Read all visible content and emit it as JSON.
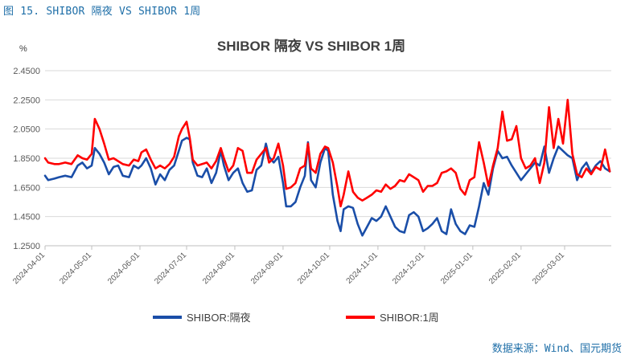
{
  "figure": {
    "caption": "图 15.  SHIBOR 隔夜 VS SHIBOR 1周",
    "source": "数据来源：Wind、国元期货"
  },
  "chart_data": {
    "type": "line",
    "title": "SHIBOR 隔夜 VS SHIBOR 1周",
    "unit": "%",
    "ylim": [
      1.25,
      2.45
    ],
    "yticks": [
      "2.4500",
      "2.2500",
      "2.0500",
      "1.8500",
      "1.6500",
      "1.4500",
      "1.2500"
    ],
    "ytick_values": [
      2.45,
      2.25,
      2.05,
      1.85,
      1.65,
      1.45,
      1.25
    ],
    "xlim": [
      "2024-04-01",
      "2025-03-31"
    ],
    "xticks": [
      "2024-04-01",
      "2024-05-01",
      "2024-06-01",
      "2024-07-01",
      "2024-08-01",
      "2024-09-01",
      "2024-10-01",
      "2024-11-01",
      "2024-12-01",
      "2025-01-01",
      "2025-02-01",
      "2025-03-01"
    ],
    "grid": true,
    "legend_position": "bottom",
    "colors": {
      "overnight": "#1a4ea8",
      "week": "#ff0000",
      "grid": "#d9d9d9",
      "axis": "#bfbfbf"
    },
    "series": [
      {
        "name": "SHIBOR:隔夜",
        "color": "#1a4ea8",
        "points": [
          [
            "2024-04-01",
            1.73
          ],
          [
            "2024-04-03",
            1.7
          ],
          [
            "2024-04-07",
            1.71
          ],
          [
            "2024-04-10",
            1.72
          ],
          [
            "2024-04-14",
            1.73
          ],
          [
            "2024-04-18",
            1.72
          ],
          [
            "2024-04-22",
            1.8
          ],
          [
            "2024-04-25",
            1.82
          ],
          [
            "2024-04-28",
            1.78
          ],
          [
            "2024-05-01",
            1.8
          ],
          [
            "2024-05-03",
            1.92
          ],
          [
            "2024-05-06",
            1.88
          ],
          [
            "2024-05-09",
            1.82
          ],
          [
            "2024-05-12",
            1.74
          ],
          [
            "2024-05-15",
            1.79
          ],
          [
            "2024-05-18",
            1.8
          ],
          [
            "2024-05-21",
            1.73
          ],
          [
            "2024-05-25",
            1.72
          ],
          [
            "2024-05-28",
            1.8
          ],
          [
            "2024-05-31",
            1.78
          ],
          [
            "2024-06-02",
            1.8
          ],
          [
            "2024-06-05",
            1.85
          ],
          [
            "2024-06-08",
            1.78
          ],
          [
            "2024-06-11",
            1.67
          ],
          [
            "2024-06-14",
            1.74
          ],
          [
            "2024-06-17",
            1.7
          ],
          [
            "2024-06-20",
            1.77
          ],
          [
            "2024-06-23",
            1.8
          ],
          [
            "2024-06-26",
            1.9
          ],
          [
            "2024-06-28",
            1.97
          ],
          [
            "2024-07-01",
            1.99
          ],
          [
            "2024-07-03",
            1.98
          ],
          [
            "2024-07-05",
            1.82
          ],
          [
            "2024-07-08",
            1.73
          ],
          [
            "2024-07-11",
            1.72
          ],
          [
            "2024-07-14",
            1.78
          ],
          [
            "2024-07-17",
            1.68
          ],
          [
            "2024-07-20",
            1.75
          ],
          [
            "2024-07-23",
            1.9
          ],
          [
            "2024-07-25",
            1.8
          ],
          [
            "2024-07-28",
            1.7
          ],
          [
            "2024-07-31",
            1.75
          ],
          [
            "2024-08-03",
            1.78
          ],
          [
            "2024-08-06",
            1.68
          ],
          [
            "2024-08-09",
            1.62
          ],
          [
            "2024-08-12",
            1.63
          ],
          [
            "2024-08-15",
            1.77
          ],
          [
            "2024-08-18",
            1.8
          ],
          [
            "2024-08-21",
            1.95
          ],
          [
            "2024-08-23",
            1.86
          ],
          [
            "2024-08-26",
            1.82
          ],
          [
            "2024-08-29",
            1.86
          ],
          [
            "2024-09-01",
            1.68
          ],
          [
            "2024-09-03",
            1.52
          ],
          [
            "2024-09-06",
            1.52
          ],
          [
            "2024-09-09",
            1.55
          ],
          [
            "2024-09-12",
            1.65
          ],
          [
            "2024-09-15",
            1.73
          ],
          [
            "2024-09-17",
            1.96
          ],
          [
            "2024-09-19",
            1.7
          ],
          [
            "2024-09-22",
            1.65
          ],
          [
            "2024-09-25",
            1.82
          ],
          [
            "2024-09-28",
            1.92
          ],
          [
            "2024-09-30",
            1.9
          ],
          [
            "2024-10-03",
            1.6
          ],
          [
            "2024-10-06",
            1.42
          ],
          [
            "2024-10-08",
            1.35
          ],
          [
            "2024-10-10",
            1.5
          ],
          [
            "2024-10-13",
            1.52
          ],
          [
            "2024-10-16",
            1.51
          ],
          [
            "2024-10-19",
            1.4
          ],
          [
            "2024-10-22",
            1.32
          ],
          [
            "2024-10-25",
            1.38
          ],
          [
            "2024-10-28",
            1.44
          ],
          [
            "2024-10-31",
            1.42
          ],
          [
            "2024-11-03",
            1.45
          ],
          [
            "2024-11-06",
            1.52
          ],
          [
            "2024-11-09",
            1.45
          ],
          [
            "2024-11-12",
            1.38
          ],
          [
            "2024-11-15",
            1.35
          ],
          [
            "2024-11-18",
            1.34
          ],
          [
            "2024-11-21",
            1.46
          ],
          [
            "2024-11-24",
            1.48
          ],
          [
            "2024-11-27",
            1.45
          ],
          [
            "2024-11-30",
            1.35
          ],
          [
            "2024-12-03",
            1.37
          ],
          [
            "2024-12-06",
            1.4
          ],
          [
            "2024-12-09",
            1.44
          ],
          [
            "2024-12-12",
            1.35
          ],
          [
            "2024-12-15",
            1.33
          ],
          [
            "2024-12-18",
            1.5
          ],
          [
            "2024-12-21",
            1.4
          ],
          [
            "2024-12-24",
            1.35
          ],
          [
            "2024-12-27",
            1.33
          ],
          [
            "2024-12-30",
            1.39
          ],
          [
            "2025-01-02",
            1.38
          ],
          [
            "2025-01-05",
            1.52
          ],
          [
            "2025-01-08",
            1.68
          ],
          [
            "2025-01-11",
            1.6
          ],
          [
            "2025-01-14",
            1.78
          ],
          [
            "2025-01-17",
            1.9
          ],
          [
            "2025-01-20",
            1.85
          ],
          [
            "2025-01-23",
            1.86
          ],
          [
            "2025-01-26",
            1.8
          ],
          [
            "2025-01-29",
            1.75
          ],
          [
            "2025-02-01",
            1.7
          ],
          [
            "2025-02-04",
            1.74
          ],
          [
            "2025-02-07",
            1.78
          ],
          [
            "2025-02-10",
            1.82
          ],
          [
            "2025-02-13",
            1.8
          ],
          [
            "2025-02-16",
            1.93
          ],
          [
            "2025-02-19",
            1.75
          ],
          [
            "2025-02-22",
            1.85
          ],
          [
            "2025-02-25",
            1.93
          ],
          [
            "2025-02-28",
            1.9
          ],
          [
            "2025-03-03",
            1.87
          ],
          [
            "2025-03-06",
            1.85
          ],
          [
            "2025-03-09",
            1.7
          ],
          [
            "2025-03-12",
            1.78
          ],
          [
            "2025-03-15",
            1.82
          ],
          [
            "2025-03-18",
            1.75
          ],
          [
            "2025-03-21",
            1.8
          ],
          [
            "2025-03-24",
            1.83
          ],
          [
            "2025-03-27",
            1.78
          ],
          [
            "2025-03-30",
            1.76
          ]
        ]
      },
      {
        "name": "SHIBOR:1周",
        "color": "#ff0000",
        "points": [
          [
            "2024-04-01",
            1.85
          ],
          [
            "2024-04-03",
            1.82
          ],
          [
            "2024-04-07",
            1.81
          ],
          [
            "2024-04-10",
            1.81
          ],
          [
            "2024-04-14",
            1.82
          ],
          [
            "2024-04-18",
            1.81
          ],
          [
            "2024-04-22",
            1.87
          ],
          [
            "2024-04-25",
            1.85
          ],
          [
            "2024-04-28",
            1.84
          ],
          [
            "2024-05-01",
            1.88
          ],
          [
            "2024-05-03",
            2.12
          ],
          [
            "2024-05-06",
            2.05
          ],
          [
            "2024-05-09",
            1.95
          ],
          [
            "2024-05-12",
            1.84
          ],
          [
            "2024-05-15",
            1.85
          ],
          [
            "2024-05-18",
            1.83
          ],
          [
            "2024-05-21",
            1.81
          ],
          [
            "2024-05-25",
            1.8
          ],
          [
            "2024-05-28",
            1.84
          ],
          [
            "2024-05-31",
            1.83
          ],
          [
            "2024-06-02",
            1.89
          ],
          [
            "2024-06-05",
            1.91
          ],
          [
            "2024-06-08",
            1.84
          ],
          [
            "2024-06-11",
            1.78
          ],
          [
            "2024-06-14",
            1.8
          ],
          [
            "2024-06-17",
            1.78
          ],
          [
            "2024-06-20",
            1.81
          ],
          [
            "2024-06-23",
            1.86
          ],
          [
            "2024-06-26",
            2.0
          ],
          [
            "2024-06-28",
            2.05
          ],
          [
            "2024-07-01",
            2.1
          ],
          [
            "2024-07-03",
            1.99
          ],
          [
            "2024-07-05",
            1.84
          ],
          [
            "2024-07-08",
            1.8
          ],
          [
            "2024-07-11",
            1.81
          ],
          [
            "2024-07-14",
            1.82
          ],
          [
            "2024-07-17",
            1.78
          ],
          [
            "2024-07-20",
            1.83
          ],
          [
            "2024-07-23",
            1.92
          ],
          [
            "2024-07-25",
            1.85
          ],
          [
            "2024-07-28",
            1.76
          ],
          [
            "2024-07-31",
            1.8
          ],
          [
            "2024-08-03",
            1.92
          ],
          [
            "2024-08-06",
            1.9
          ],
          [
            "2024-08-09",
            1.75
          ],
          [
            "2024-08-12",
            1.75
          ],
          [
            "2024-08-15",
            1.84
          ],
          [
            "2024-08-18",
            1.88
          ],
          [
            "2024-08-21",
            1.92
          ],
          [
            "2024-08-23",
            1.82
          ],
          [
            "2024-08-26",
            1.85
          ],
          [
            "2024-08-29",
            1.95
          ],
          [
            "2024-09-01",
            1.8
          ],
          [
            "2024-09-03",
            1.64
          ],
          [
            "2024-09-06",
            1.65
          ],
          [
            "2024-09-09",
            1.68
          ],
          [
            "2024-09-12",
            1.78
          ],
          [
            "2024-09-15",
            1.8
          ],
          [
            "2024-09-17",
            1.95
          ],
          [
            "2024-09-19",
            1.78
          ],
          [
            "2024-09-22",
            1.75
          ],
          [
            "2024-09-25",
            1.88
          ],
          [
            "2024-09-28",
            1.93
          ],
          [
            "2024-09-30",
            1.92
          ],
          [
            "2024-10-03",
            1.82
          ],
          [
            "2024-10-06",
            1.65
          ],
          [
            "2024-10-08",
            1.52
          ],
          [
            "2024-10-10",
            1.6
          ],
          [
            "2024-10-13",
            1.76
          ],
          [
            "2024-10-16",
            1.62
          ],
          [
            "2024-10-19",
            1.58
          ],
          [
            "2024-10-22",
            1.56
          ],
          [
            "2024-10-25",
            1.58
          ],
          [
            "2024-10-28",
            1.6
          ],
          [
            "2024-10-31",
            1.63
          ],
          [
            "2024-11-03",
            1.62
          ],
          [
            "2024-11-06",
            1.67
          ],
          [
            "2024-11-09",
            1.64
          ],
          [
            "2024-11-12",
            1.66
          ],
          [
            "2024-11-15",
            1.7
          ],
          [
            "2024-11-18",
            1.69
          ],
          [
            "2024-11-21",
            1.74
          ],
          [
            "2024-11-24",
            1.72
          ],
          [
            "2024-11-27",
            1.7
          ],
          [
            "2024-11-30",
            1.62
          ],
          [
            "2024-12-03",
            1.66
          ],
          [
            "2024-12-06",
            1.66
          ],
          [
            "2024-12-09",
            1.68
          ],
          [
            "2024-12-12",
            1.75
          ],
          [
            "2024-12-15",
            1.76
          ],
          [
            "2024-12-18",
            1.78
          ],
          [
            "2024-12-21",
            1.75
          ],
          [
            "2024-12-24",
            1.64
          ],
          [
            "2024-12-27",
            1.6
          ],
          [
            "2024-12-30",
            1.7
          ],
          [
            "2025-01-02",
            1.72
          ],
          [
            "2025-01-05",
            1.96
          ],
          [
            "2025-01-08",
            1.82
          ],
          [
            "2025-01-11",
            1.66
          ],
          [
            "2025-01-14",
            1.8
          ],
          [
            "2025-01-17",
            1.92
          ],
          [
            "2025-01-20",
            2.17
          ],
          [
            "2025-01-23",
            1.97
          ],
          [
            "2025-01-26",
            1.98
          ],
          [
            "2025-01-29",
            2.07
          ],
          [
            "2025-02-01",
            1.85
          ],
          [
            "2025-02-04",
            1.78
          ],
          [
            "2025-02-07",
            1.8
          ],
          [
            "2025-02-10",
            1.85
          ],
          [
            "2025-02-13",
            1.68
          ],
          [
            "2025-02-16",
            1.82
          ],
          [
            "2025-02-19",
            2.2
          ],
          [
            "2025-02-22",
            1.92
          ],
          [
            "2025-02-25",
            2.12
          ],
          [
            "2025-02-28",
            1.95
          ],
          [
            "2025-03-03",
            2.25
          ],
          [
            "2025-03-06",
            1.88
          ],
          [
            "2025-03-09",
            1.74
          ],
          [
            "2025-03-12",
            1.72
          ],
          [
            "2025-03-15",
            1.78
          ],
          [
            "2025-03-18",
            1.74
          ],
          [
            "2025-03-21",
            1.79
          ],
          [
            "2025-03-24",
            1.77
          ],
          [
            "2025-03-27",
            1.91
          ],
          [
            "2025-03-30",
            1.76
          ]
        ]
      }
    ]
  }
}
